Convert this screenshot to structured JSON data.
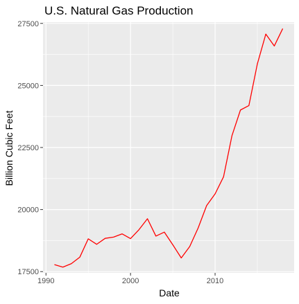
{
  "chart_data": {
    "type": "line",
    "title": "U.S. Natural Gas Production",
    "xlabel": "Date",
    "ylabel": "Billion Cubic Feet",
    "xlim": [
      1989.65,
      2019.35
    ],
    "ylim": [
      17450,
      27550
    ],
    "x_ticks": [
      1990,
      2000,
      2010
    ],
    "y_ticks": [
      17500,
      20000,
      22500,
      25000,
      27500
    ],
    "x_tick_labels": [
      "1990",
      "2000",
      "2010"
    ],
    "y_tick_labels": [
      "17500",
      "20000",
      "22500",
      "25000",
      "27500"
    ],
    "grid": true,
    "legend": "none",
    "colors": {
      "panel": "#ebebeb",
      "grid_major": "#ffffff",
      "line": "#ff0000"
    },
    "series": [
      {
        "x": [
          1991,
          1992,
          1993,
          1994,
          1995,
          1996,
          1997,
          1998,
          1999,
          2000,
          2001,
          2002,
          2003,
          2004,
          2005,
          2006,
          2007,
          2008,
          2009,
          2010,
          2011,
          2012,
          2013,
          2014,
          2015,
          2016,
          2017,
          2018
        ],
        "values": [
          17780,
          17680,
          17820,
          18080,
          18820,
          18600,
          18840,
          18890,
          19020,
          18830,
          19190,
          19630,
          18930,
          19090,
          18580,
          18050,
          18510,
          19260,
          20160,
          20630,
          21320,
          22980,
          24010,
          24190,
          25870,
          27070,
          26590,
          27290
        ]
      }
    ]
  }
}
